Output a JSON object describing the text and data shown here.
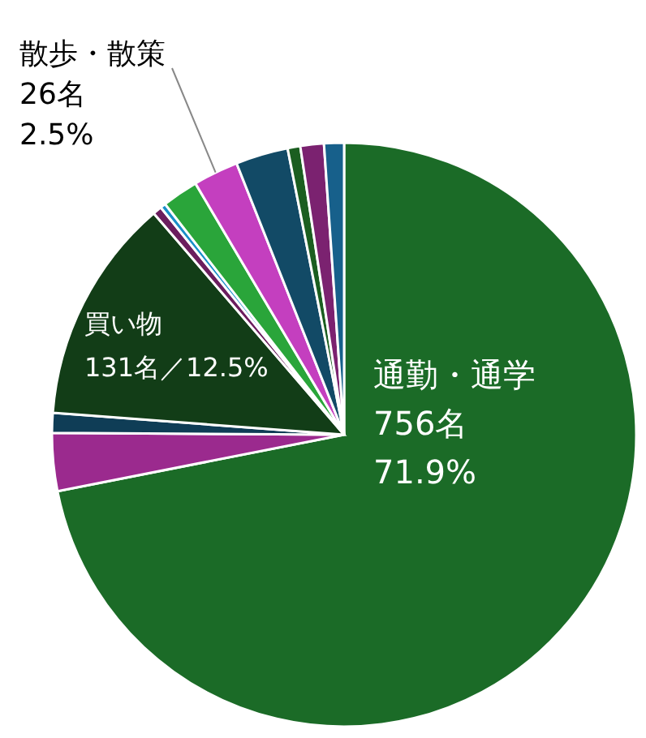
{
  "chart_data": {
    "type": "pie",
    "categories": [
      "通勤・通学",
      null,
      null,
      "買い物",
      null,
      null,
      null,
      "散歩・散策",
      null,
      null,
      null,
      null
    ],
    "values": [
      71.9,
      3.2,
      1.1,
      12.5,
      0.5,
      0.3,
      2.0,
      2.5,
      2.9,
      0.7,
      1.3,
      1.1
    ],
    "value_labels": [
      "756名\n71.9%",
      null,
      null,
      "131名／12.5%",
      null,
      null,
      null,
      "26名\n2.5%",
      null,
      null,
      null,
      null
    ],
    "colors": [
      "#1b6b27",
      "#9b2a8e",
      "#0f3d56",
      "#123d17",
      "#6b1d5e",
      "#1a8fc9",
      "#2aa53a",
      "#c43fbf",
      "#124a66",
      "#1b5e20",
      "#7b2270",
      "#17608b"
    ]
  }
}
